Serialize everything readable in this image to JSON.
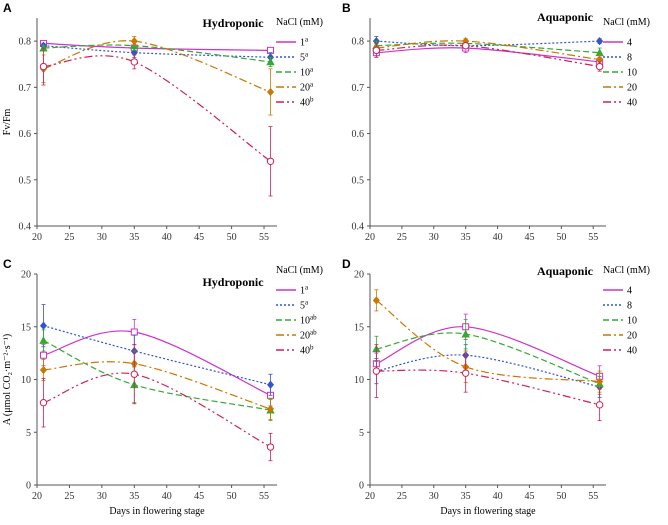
{
  "chart_data": [
    {
      "id": "A",
      "type": "line",
      "letter": "A",
      "title": "Hydroponic",
      "xlabel": "",
      "ylabel": "Fv/Fm",
      "xlim": [
        20,
        57
      ],
      "ylim": [
        0.4,
        0.85
      ],
      "xticks": [
        20,
        25,
        30,
        35,
        40,
        45,
        50,
        55
      ],
      "yticks": [
        0.4,
        0.5,
        0.6,
        0.7,
        0.8
      ],
      "ytick_labels": [
        "0.4",
        "0.5",
        "0.6",
        "0.7",
        "0.8"
      ],
      "legend_title": "NaCl (mM)",
      "x": [
        21,
        35,
        56
      ],
      "series": [
        {
          "name": "1",
          "sup": "a",
          "color": "#cc33cc",
          "dash": "",
          "marker": "square",
          "values": [
            0.795,
            0.785,
            0.78
          ],
          "err": [
            0.005,
            0.005,
            0.005
          ]
        },
        {
          "name": "5",
          "sup": "a",
          "color": "#3355cc",
          "dash": "2,2",
          "marker": "diamond",
          "values": [
            0.79,
            0.775,
            0.765
          ],
          "err": [
            0.005,
            0.01,
            0.01
          ]
        },
        {
          "name": "10",
          "sup": "a",
          "color": "#33aa33",
          "dash": "6,3",
          "marker": "triangle",
          "values": [
            0.785,
            0.79,
            0.755
          ],
          "err": [
            0.005,
            0.01,
            0.01
          ]
        },
        {
          "name": "20",
          "sup": "a",
          "color": "#cc7700",
          "dash": "8,3,2,3",
          "marker": "diamond",
          "values": [
            0.74,
            0.8,
            0.69
          ],
          "err": [
            0.03,
            0.01,
            0.05
          ]
        },
        {
          "name": "40",
          "sup": "b",
          "color": "#cc2255",
          "dash": "8,3,2,3,2,3",
          "marker": "circle",
          "values": [
            0.745,
            0.755,
            0.54
          ],
          "err": [
            0.04,
            0.015,
            0.075
          ]
        }
      ]
    },
    {
      "id": "B",
      "type": "line",
      "letter": "B",
      "title": "Aquaponic",
      "xlabel": "",
      "ylabel": "",
      "xlim": [
        20,
        57
      ],
      "ylim": [
        0.4,
        0.85
      ],
      "xticks": [
        20,
        25,
        30,
        35,
        40,
        45,
        50,
        55
      ],
      "yticks": [
        0.4,
        0.5,
        0.6,
        0.7,
        0.8
      ],
      "ytick_labels": [
        "0.4",
        "0.5",
        "0.6",
        "0.7",
        "0.8"
      ],
      "legend_title": "NaCl (mM)",
      "x": [
        21,
        35,
        56
      ],
      "series": [
        {
          "name": "4",
          "sup": "",
          "color": "#cc33cc",
          "dash": "",
          "marker": "square",
          "values": [
            0.775,
            0.785,
            0.755
          ],
          "err": [
            0.01,
            0.01,
            0.01
          ]
        },
        {
          "name": "8",
          "sup": "",
          "color": "#3355cc",
          "dash": "2,2",
          "marker": "diamond",
          "values": [
            0.8,
            0.79,
            0.8
          ],
          "err": [
            0.01,
            0.005,
            0.005
          ]
        },
        {
          "name": "10",
          "sup": "",
          "color": "#33aa33",
          "dash": "6,3",
          "marker": "triangle",
          "values": [
            0.79,
            0.795,
            0.775
          ],
          "err": [
            0.01,
            0.01,
            0.01
          ]
        },
        {
          "name": "20",
          "sup": "",
          "color": "#cc7700",
          "dash": "8,3,2,3",
          "marker": "diamond",
          "values": [
            0.785,
            0.8,
            0.76
          ],
          "err": [
            0.01,
            0.005,
            0.01
          ]
        },
        {
          "name": "40",
          "sup": "",
          "color": "#cc2255",
          "dash": "8,3,2,3,2,3",
          "marker": "circle",
          "values": [
            0.78,
            0.79,
            0.745
          ],
          "err": [
            0.015,
            0.005,
            0.01
          ]
        }
      ]
    },
    {
      "id": "C",
      "type": "line",
      "letter": "C",
      "title": "Hydroponic",
      "xlabel": "Days in flowering stage",
      "ylabel": "A (μmol CO₂·m⁻²·s⁻¹)",
      "xlim": [
        20,
        57
      ],
      "ylim": [
        0,
        20
      ],
      "xticks": [
        20,
        25,
        30,
        35,
        40,
        45,
        50,
        55
      ],
      "yticks": [
        0,
        5,
        10,
        15,
        20
      ],
      "ytick_labels": [
        "0",
        "5",
        "10",
        "15",
        "20"
      ],
      "legend_title": "NaCl (mM)",
      "x": [
        21,
        35,
        56
      ],
      "series": [
        {
          "name": "1",
          "sup": "a",
          "color": "#cc33cc",
          "dash": "",
          "marker": "square",
          "values": [
            12.3,
            14.5,
            8.5
          ],
          "err": [
            1.0,
            1.2,
            1.0
          ]
        },
        {
          "name": "5",
          "sup": "a",
          "color": "#3355cc",
          "dash": "2,2",
          "marker": "diamond",
          "values": [
            15.1,
            12.7,
            9.5
          ],
          "err": [
            2.0,
            1.5,
            1.0
          ]
        },
        {
          "name": "10",
          "sup": "ab",
          "color": "#33aa33",
          "dash": "6,3",
          "marker": "triangle",
          "values": [
            13.7,
            9.5,
            7.1
          ],
          "err": [
            1.0,
            1.7,
            1.0
          ]
        },
        {
          "name": "20",
          "sup": "ab",
          "color": "#cc7700",
          "dash": "8,3,2,3",
          "marker": "diamond",
          "values": [
            10.9,
            11.5,
            7.2
          ],
          "err": [
            1.0,
            1.2,
            1.0
          ]
        },
        {
          "name": "40",
          "sup": "b",
          "color": "#cc2255",
          "dash": "8,3,2,3,2,3",
          "marker": "circle",
          "values": [
            7.8,
            10.5,
            3.6
          ],
          "err": [
            2.3,
            2.8,
            1.3
          ]
        }
      ]
    },
    {
      "id": "D",
      "type": "line",
      "letter": "D",
      "title": "Aquaponic",
      "xlabel": "Days in flowering stage",
      "ylabel": "",
      "xlim": [
        20,
        57
      ],
      "ylim": [
        0,
        20
      ],
      "xticks": [
        20,
        25,
        30,
        35,
        40,
        45,
        50,
        55
      ],
      "yticks": [
        0,
        5,
        10,
        15,
        20
      ],
      "ytick_labels": [
        "0",
        "5",
        "10",
        "15",
        "20"
      ],
      "legend_title": "NaCl (mM)",
      "x": [
        21,
        35,
        56
      ],
      "series": [
        {
          "name": "4",
          "sup": "",
          "color": "#cc33cc",
          "dash": "",
          "marker": "square",
          "values": [
            11.5,
            15.0,
            10.3
          ],
          "err": [
            1.0,
            1.2,
            1.0
          ]
        },
        {
          "name": "8",
          "sup": "",
          "color": "#3355cc",
          "dash": "2,2",
          "marker": "diamond",
          "values": [
            10.8,
            12.3,
            9.3
          ],
          "err": [
            1.2,
            1.0,
            1.0
          ]
        },
        {
          "name": "10",
          "sup": "",
          "color": "#33aa33",
          "dash": "6,3",
          "marker": "triangle",
          "values": [
            12.9,
            14.3,
            9.6
          ],
          "err": [
            1.2,
            1.4,
            1.0
          ]
        },
        {
          "name": "20",
          "sup": "",
          "color": "#cc7700",
          "dash": "8,3,2,3",
          "marker": "diamond",
          "values": [
            17.5,
            11.2,
            9.8
          ],
          "err": [
            1.0,
            1.5,
            1.0
          ]
        },
        {
          "name": "40",
          "sup": "",
          "color": "#cc2255",
          "dash": "8,3,2,3,2,3",
          "marker": "circle",
          "values": [
            10.8,
            10.6,
            7.6
          ],
          "err": [
            2.5,
            1.8,
            1.5
          ]
        }
      ]
    }
  ]
}
